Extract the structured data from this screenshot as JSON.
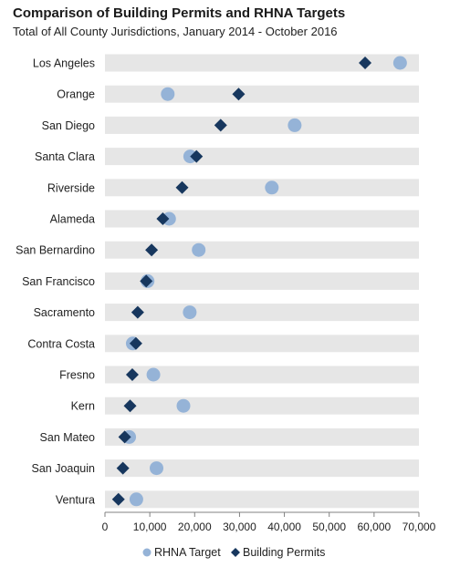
{
  "title": "Comparison of Building Permits and RHNA Targets",
  "subtitle": "Total of All County Jurisdictions, January 2014 - October 2016",
  "colors": {
    "rhna": "#95b3d7",
    "permits": "#17375e",
    "band": "#e6e6e6",
    "axis": "#808080"
  },
  "chart_data": {
    "type": "scatter",
    "categories": [
      "Los Angeles",
      "Orange",
      "San Diego",
      "Santa Clara",
      "Riverside",
      "Alameda",
      "San Bernardino",
      "San Francisco",
      "Sacramento",
      "Contra Costa",
      "Fresno",
      "Kern",
      "San Mateo",
      "San Joaquin",
      "Ventura"
    ],
    "series": [
      {
        "name": "RHNA Target",
        "marker": "circle",
        "values": [
          65800,
          14000,
          42300,
          19000,
          37200,
          14300,
          20900,
          9500,
          18900,
          6200,
          10800,
          17500,
          5400,
          11500,
          7000
        ]
      },
      {
        "name": "Building Permits",
        "marker": "diamond",
        "values": [
          58000,
          29800,
          25800,
          20400,
          17200,
          12900,
          10400,
          9200,
          7300,
          6900,
          6100,
          5600,
          4400,
          4000,
          3000
        ]
      }
    ],
    "xlim": [
      0,
      70000
    ],
    "xticks": [
      "0",
      "10,000",
      "20,000",
      "30,000",
      "40,000",
      "50,000",
      "60,000",
      "70,000"
    ],
    "legend": "bottom",
    "grid": false
  }
}
